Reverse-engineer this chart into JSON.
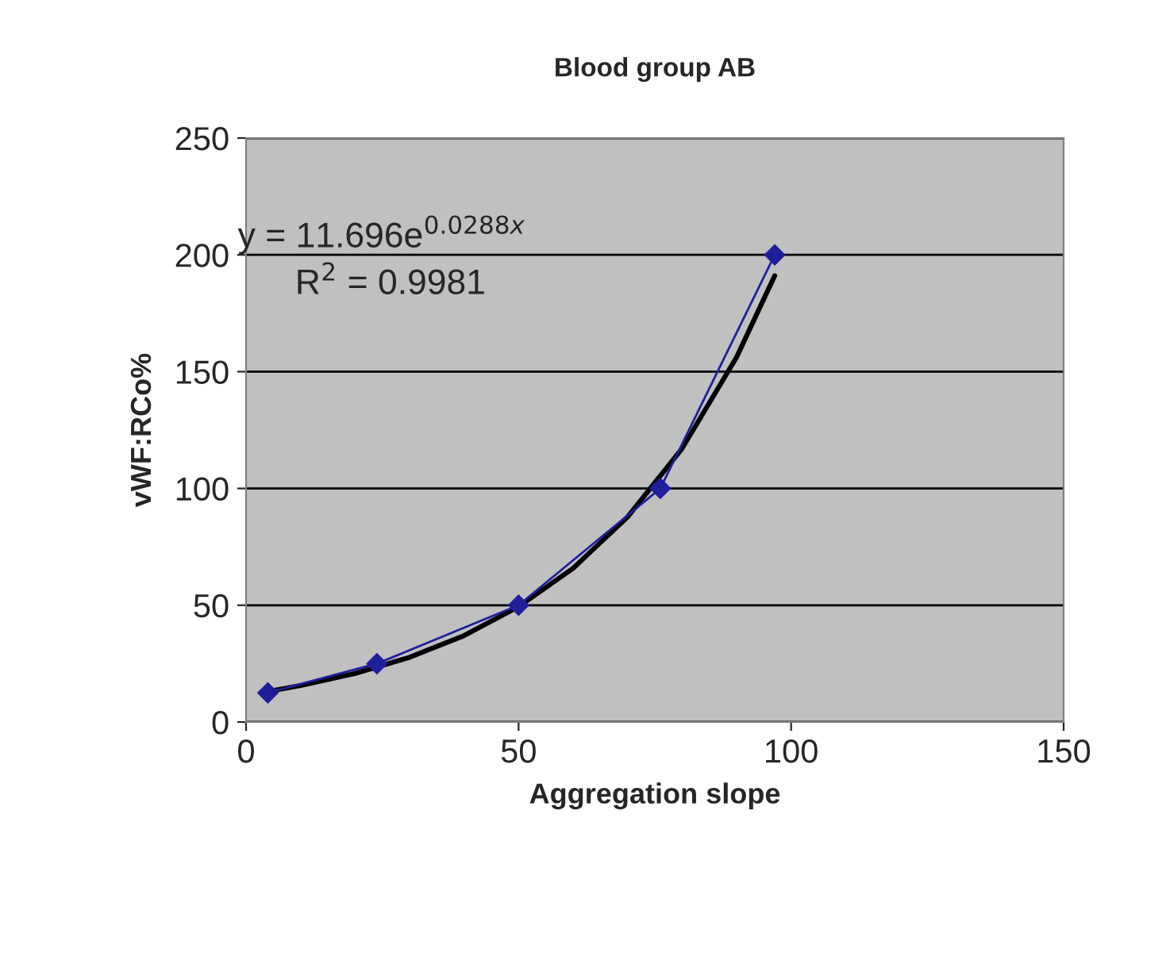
{
  "chart_data": {
    "type": "line",
    "title": "Blood group AB",
    "xlabel": "Aggregation slope",
    "ylabel": "vWF:RCo%",
    "x": [
      4,
      24,
      50,
      76,
      97
    ],
    "series": [
      {
        "color": "#1f1f9c",
        "values": [
          12.5,
          25,
          50,
          100,
          200
        ],
        "marker": "diamond"
      },
      {
        "type": "line",
        "color": "#000000",
        "marker": "none",
        "x": [
          4,
          10,
          20,
          30,
          40,
          50,
          60,
          70,
          80,
          90,
          97
        ],
        "values": [
          13.1,
          15.6,
          20.8,
          27.7,
          37.0,
          49.4,
          65.8,
          87.8,
          117.1,
          156.2,
          191.1
        ]
      }
    ],
    "xlim": [
      0,
      150
    ],
    "xticks": [
      0,
      50,
      100,
      150
    ],
    "ylim": [
      0,
      250
    ],
    "yticks": [
      0,
      50,
      100,
      150,
      200,
      250
    ],
    "grid": "y",
    "annotations": [
      "y = 11.696e$^{0.0288x}$",
      "R$^{2}$ = 0.9981"
    ]
  }
}
